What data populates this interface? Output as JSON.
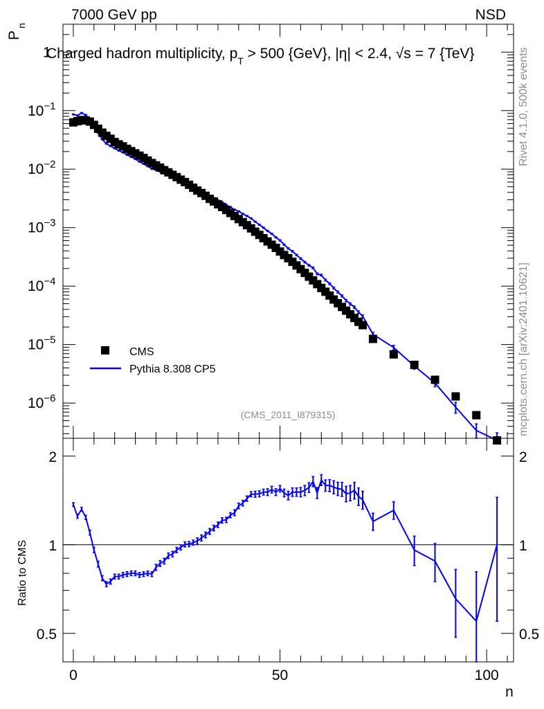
{
  "header": {
    "energy_label": "7000 GeV pp",
    "process_label": "NSD",
    "analysis_id": "(CMS_2011_I879315)",
    "side_rivet": "Rivet 4.1.0,  500k events",
    "side_mcplots": "mcplots.cern.ch [arXiv:2401.10621]"
  },
  "chart_data": [
    {
      "type": "scatter",
      "panel": "main",
      "title": "Charged hadron multiplicity, p_T > 500 {GeV}, |η| < 2.4, √s = 7 {TeV}",
      "title_parts": {
        "pre": "Charged hadron multiplicity, p",
        "sub": "T",
        "mid": " > 500 {GeV}, |η| < 2.4, ",
        "root": "√",
        "post": "s = 7 {TeV}"
      },
      "ylabel": "P",
      "ylabel_sub": "n",
      "yscale": "log",
      "ylim": [
        2.5e-07,
        3.0
      ],
      "xlim": [
        -2.5,
        106.5
      ],
      "y_tick_labels": [
        "1",
        "10",
        "10",
        "10",
        "10",
        "10",
        "10"
      ],
      "y_tick_exponents": [
        "",
        "−1",
        "−2",
        "−3",
        "−4",
        "−5",
        "−6"
      ],
      "legend": {
        "position": "bottom-left",
        "entries": [
          "CMS",
          "Pythia 8.308 CP5"
        ]
      },
      "series": [
        {
          "name": "CMS",
          "marker": "square",
          "color": "#000000",
          "x": [
            0,
            1,
            2,
            3,
            4,
            5,
            6,
            7,
            8,
            9,
            10,
            11,
            12,
            13,
            14,
            15,
            16,
            17,
            18,
            19,
            20,
            21,
            22,
            23,
            24,
            25,
            26,
            27,
            28,
            29,
            30,
            31,
            32,
            33,
            34,
            35,
            36,
            37,
            38,
            39,
            40,
            41,
            42,
            43,
            44,
            45,
            46,
            47,
            48,
            49,
            50,
            51,
            52,
            53,
            54,
            55,
            56,
            57,
            58,
            59,
            60,
            61,
            62,
            63,
            64,
            65,
            66,
            67,
            68,
            69,
            70,
            72.5,
            77.5,
            82.5,
            87.5,
            92.5,
            97.5,
            102.5
          ],
          "y": [
            0.063,
            0.066,
            0.069,
            0.068,
            0.065,
            0.057,
            0.049,
            0.042,
            0.037,
            0.033,
            0.029,
            0.0265,
            0.0245,
            0.0222,
            0.0203,
            0.0186,
            0.017,
            0.0155,
            0.014,
            0.0127,
            0.0116,
            0.0106,
            0.0096,
            0.0088,
            0.008,
            0.0073,
            0.0066,
            0.006,
            0.0054,
            0.0048,
            0.0043,
            0.0039,
            0.0035,
            0.0031,
            0.0028,
            0.0025,
            0.00225,
            0.002,
            0.00178,
            0.00158,
            0.0014,
            0.00124,
            0.0011,
            0.00097,
            0.00085,
            0.00075,
            0.00066,
            0.00058,
            0.00051,
            0.00045,
            0.00039,
            0.00034,
            0.0003,
            0.00026,
            0.000225,
            0.000195,
            0.000168,
            0.000145,
            0.000125,
            0.000108,
            9.3e-05,
            8e-05,
            6.9e-05,
            5.9e-05,
            5.1e-05,
            4.4e-05,
            3.8e-05,
            3.3e-05,
            2.85e-05,
            2.45e-05,
            2.15e-05,
            1.25e-05,
            6.8e-06,
            4.5e-06,
            2.5e-06,
            1.3e-06,
            6.2e-07,
            2.3e-07
          ]
        },
        {
          "name": "Pythia 8.308 CP5",
          "marker": "line",
          "color": "#0000ee",
          "x": [
            0,
            1,
            2,
            3,
            4,
            5,
            6,
            7,
            8,
            9,
            10,
            11,
            12,
            13,
            14,
            15,
            16,
            17,
            18,
            19,
            20,
            21,
            22,
            23,
            24,
            25,
            26,
            27,
            28,
            29,
            30,
            31,
            32,
            33,
            34,
            35,
            36,
            37,
            38,
            39,
            40,
            41,
            42,
            43,
            44,
            45,
            46,
            47,
            48,
            49,
            50,
            51,
            52,
            53,
            54,
            55,
            56,
            57,
            58,
            59,
            60,
            61,
            62,
            63,
            64,
            65,
            66,
            67,
            68,
            69,
            70,
            72.5,
            77.5,
            82.5,
            87.5,
            92.5,
            97.5,
            102.5
          ],
          "y": [
            0.0863,
            0.0826,
            0.0911,
            0.0843,
            0.0715,
            0.0547,
            0.0421,
            0.0323,
            0.0272,
            0.0248,
            0.0227,
            0.0207,
            0.0193,
            0.0176,
            0.0162,
            0.0149,
            0.0134,
            0.0123,
            0.0112,
            0.0101,
            0.00972,
            0.00916,
            0.00845,
            0.00808,
            0.00744,
            0.00701,
            0.00647,
            0.00602,
            0.00543,
            0.00488,
            0.00443,
            0.00412,
            0.00378,
            0.00345,
            0.0032,
            0.00293,
            0.00272,
            0.00243,
            0.00224,
            0.00203,
            0.0019,
            0.00172,
            0.00158,
            0.00144,
            0.00126,
            0.00112,
            0.000997,
            0.000876,
            0.000786,
            0.00068,
            0.000605,
            0.000511,
            0.000441,
            0.000394,
            0.00034,
            0.000295,
            0.000257,
            0.000227,
            0.000205,
            0.000162,
            0.000154,
            0.000127,
            0.00011,
            9.25e-05,
            7.9e-05,
            6.8e-05,
            5.66e-05,
            4.95e-05,
            4.36e-05,
            3.58e-05,
            3.05e-05,
            1.5e-05,
            8.9e-06,
            4.3e-06,
            2.2e-06,
            8.5e-07,
            3.4e-07,
            2.3e-07
          ],
          "yerr": [
            0.0017,
            0.0017,
            0.0018,
            0.0017,
            0.0014,
            0.0011,
            0.0008,
            0.0006,
            0.0005,
            0.0005,
            0.0005,
            0.0004,
            0.0004,
            0.0004,
            0.0003,
            0.0003,
            0.0003,
            0.0002,
            0.0002,
            0.0002,
            0.0002,
            0.0002,
            0.0002,
            0.00016,
            0.00015,
            0.00014,
            0.00013,
            0.00012,
            0.00011,
            0.0001,
            9e-05,
            8e-05,
            8e-05,
            7e-05,
            6e-05,
            6e-05,
            5e-05,
            5e-05,
            5e-05,
            4e-05,
            4e-05,
            3.5e-05,
            3.2e-05,
            3e-05,
            2.6e-05,
            2.4e-05,
            2.2e-05,
            1.9e-05,
            1.8e-05,
            1.6e-05,
            1.5e-05,
            1.3e-05,
            1.2e-05,
            1.1e-05,
            1e-05,
            9e-06,
            8e-06,
            7e-06,
            6.5e-06,
            5.5e-06,
            5e-06,
            4.5e-06,
            4e-06,
            3.5e-06,
            3.1e-06,
            2.8e-06,
            2.5e-06,
            2.2e-06,
            2e-06,
            1.8e-06,
            1.6e-06,
            1.2e-06,
            8e-07,
            5e-07,
            3e-07,
            1.8e-07,
            1e-07,
            8e-08
          ]
        }
      ]
    },
    {
      "type": "line",
      "panel": "ratio",
      "ylabel": "Ratio to CMS",
      "xlabel": "n",
      "ylim": [
        0.4,
        2.3
      ],
      "xlim": [
        -2.5,
        106.5
      ],
      "x_ticks": [
        0,
        50,
        100
      ],
      "x_tick_labels": [
        "0",
        "50",
        "100"
      ],
      "y_ticks": [
        0.5,
        1,
        2
      ],
      "y_tick_labels": [
        "0.5",
        "1",
        "2"
      ],
      "reference_line": 1,
      "series": [
        {
          "name": "Pythia 8.308 CP5 / CMS",
          "color": "#0000ee",
          "x": [
            0,
            1,
            2,
            3,
            4,
            5,
            6,
            7,
            8,
            9,
            10,
            11,
            12,
            13,
            14,
            15,
            16,
            17,
            18,
            19,
            20,
            21,
            22,
            23,
            24,
            25,
            26,
            27,
            28,
            29,
            30,
            31,
            32,
            33,
            34,
            35,
            36,
            37,
            38,
            39,
            40,
            41,
            42,
            43,
            44,
            45,
            46,
            47,
            48,
            49,
            50,
            51,
            52,
            53,
            54,
            55,
            56,
            57,
            58,
            59,
            60,
            61,
            62,
            63,
            64,
            65,
            66,
            67,
            68,
            69,
            70,
            72.5,
            77.5,
            82.5,
            87.5,
            92.5,
            97.5,
            102.5
          ],
          "y": [
            1.37,
            1.25,
            1.32,
            1.24,
            1.1,
            0.96,
            0.86,
            0.77,
            0.735,
            0.75,
            0.78,
            0.78,
            0.79,
            0.795,
            0.8,
            0.8,
            0.79,
            0.795,
            0.8,
            0.795,
            0.838,
            0.864,
            0.88,
            0.918,
            0.93,
            0.96,
            0.98,
            1.003,
            1.005,
            1.017,
            1.03,
            1.055,
            1.08,
            1.11,
            1.14,
            1.17,
            1.21,
            1.215,
            1.26,
            1.285,
            1.355,
            1.385,
            1.435,
            1.485,
            1.485,
            1.49,
            1.51,
            1.51,
            1.54,
            1.51,
            1.55,
            1.5,
            1.47,
            1.51,
            1.51,
            1.51,
            1.53,
            1.565,
            1.64,
            1.5,
            1.66,
            1.59,
            1.59,
            1.57,
            1.55,
            1.545,
            1.49,
            1.5,
            1.53,
            1.46,
            1.42,
            1.2,
            1.31,
            0.96,
            0.88,
            0.655,
            0.55,
            1.0
          ],
          "yerr": [
            0.02,
            0.02,
            0.02,
            0.02,
            0.02,
            0.02,
            0.02,
            0.015,
            0.015,
            0.015,
            0.015,
            0.015,
            0.015,
            0.015,
            0.015,
            0.015,
            0.015,
            0.015,
            0.015,
            0.015,
            0.02,
            0.02,
            0.02,
            0.02,
            0.02,
            0.02,
            0.02,
            0.02,
            0.02,
            0.02,
            0.025,
            0.025,
            0.025,
            0.025,
            0.025,
            0.025,
            0.025,
            0.025,
            0.025,
            0.03,
            0.03,
            0.03,
            0.03,
            0.03,
            0.035,
            0.035,
            0.035,
            0.04,
            0.04,
            0.04,
            0.04,
            0.045,
            0.05,
            0.05,
            0.05,
            0.055,
            0.06,
            0.06,
            0.065,
            0.065,
            0.07,
            0.07,
            0.075,
            0.08,
            0.08,
            0.085,
            0.09,
            0.09,
            0.1,
            0.1,
            0.1,
            0.08,
            0.09,
            0.11,
            0.13,
            0.17,
            0.26,
            0.45
          ]
        }
      ]
    }
  ]
}
